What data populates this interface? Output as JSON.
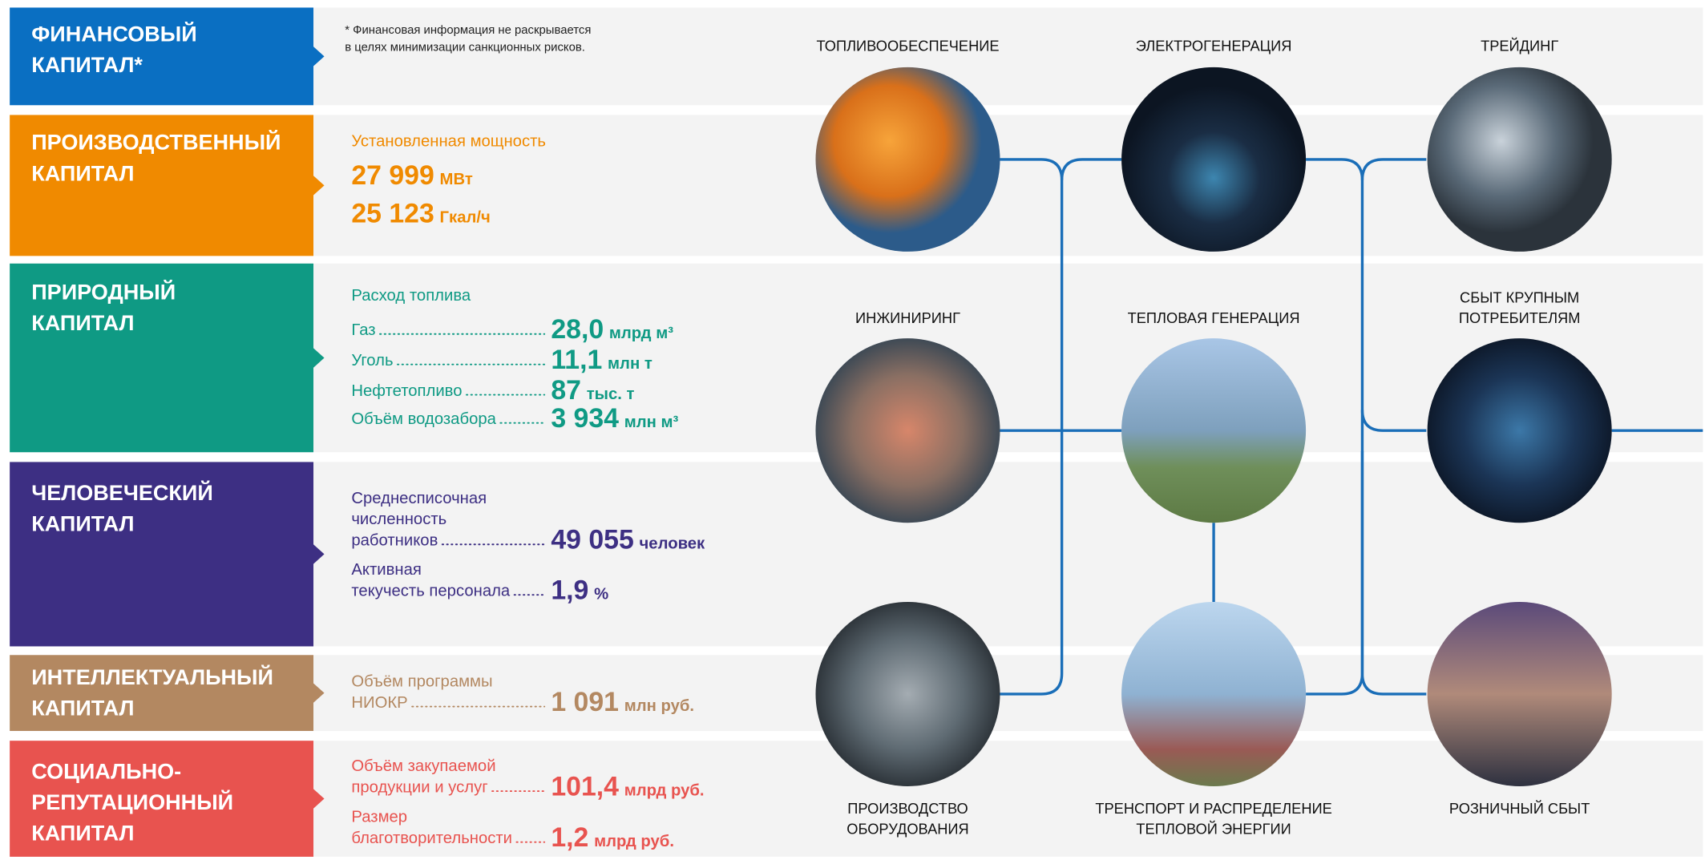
{
  "note": [
    "* Финансовая информация не раскрывается",
    "в целях минимизации санкционных рисков."
  ],
  "capitals": [
    {
      "name": [
        "ФИНАНСОВЫЙ",
        "КАПИТАЛ*"
      ],
      "color": "#0a6fc2"
    },
    {
      "name": [
        "ПРОИЗВОДСТВЕННЫЙ",
        "КАПИТАЛ"
      ],
      "color": "#f08a00",
      "heading": "Установленная мощность",
      "items": [
        {
          "value": "27 999",
          "unit": "МВт"
        },
        {
          "value": "25 123",
          "unit": "Гкал/ч"
        }
      ]
    },
    {
      "name": [
        "ПРИРОДНЫЙ",
        "КАПИТАЛ"
      ],
      "color": "#0f9a84",
      "heading": "Расход топлива",
      "items": [
        {
          "label": [
            "Газ"
          ],
          "value": "28,0",
          "unit": "млрд м³"
        },
        {
          "label": [
            "Уголь"
          ],
          "value": "11,1",
          "unit": "млн т"
        },
        {
          "label": [
            "Нефтетопливо"
          ],
          "value": "87",
          "unit": "тыс. т"
        },
        {
          "label": [
            "Объём водозабора"
          ],
          "value": "3 934",
          "unit": "млн м³"
        }
      ]
    },
    {
      "name": [
        "ЧЕЛОВЕЧЕСКИЙ",
        "КАПИТАЛ"
      ],
      "color": "#3d2f83",
      "items": [
        {
          "label": [
            "Среднесписочная",
            "численность",
            "работников"
          ],
          "value": "49 055",
          "unit": "человек"
        },
        {
          "label": [
            "Активная",
            "текучесть персонала"
          ],
          "value": "1,9",
          "unit": "%"
        }
      ]
    },
    {
      "name": [
        "ИНТЕЛЛЕКТУАЛЬНЫЙ",
        "КАПИТАЛ"
      ],
      "color": "#b38861",
      "items": [
        {
          "label": [
            "Объём программы",
            "НИОКР"
          ],
          "value": "1 091",
          "unit": "млн руб."
        }
      ]
    },
    {
      "name": [
        "СОЦИАЛЬНО-",
        "РЕПУТАЦИОННЫЙ",
        "КАПИТАЛ"
      ],
      "color": "#e8534f",
      "items": [
        {
          "label": [
            "Объём закупаемой",
            "продукции и услуг"
          ],
          "value": "101,4",
          "unit": "млрд руб."
        },
        {
          "label": [
            "Размер",
            "благотворительности"
          ],
          "value": "1,2",
          "unit": "млрд руб."
        }
      ]
    }
  ],
  "segments": [
    {
      "label": [
        "ТОПЛИВООБЕСПЕЧЕНИЕ"
      ]
    },
    {
      "label": [
        "ЭЛЕКТРОГЕНЕРАЦИЯ"
      ]
    },
    {
      "label": [
        "ТРЕЙДИНГ"
      ]
    },
    {
      "label": [
        "ИНЖИНИРИНГ"
      ]
    },
    {
      "label": [
        "ТЕПЛОВАЯ ГЕНЕРАЦИЯ"
      ]
    },
    {
      "label": [
        "СБЫТ КРУПНЫМ",
        "ПОТРЕБИТЕЛЯМ"
      ]
    },
    {
      "label": [
        "ПРОИЗВОДСТВО",
        "ОБОРУДОВАНИЯ"
      ]
    },
    {
      "label": [
        "ТРЕНСПОРТ И РАСПРЕДЕЛЕНИЕ",
        "ТЕПЛОВОЙ ЭНЕРГИИ"
      ]
    },
    {
      "label": [
        "РОЗНИЧНЫЙ СБЫТ"
      ]
    }
  ]
}
